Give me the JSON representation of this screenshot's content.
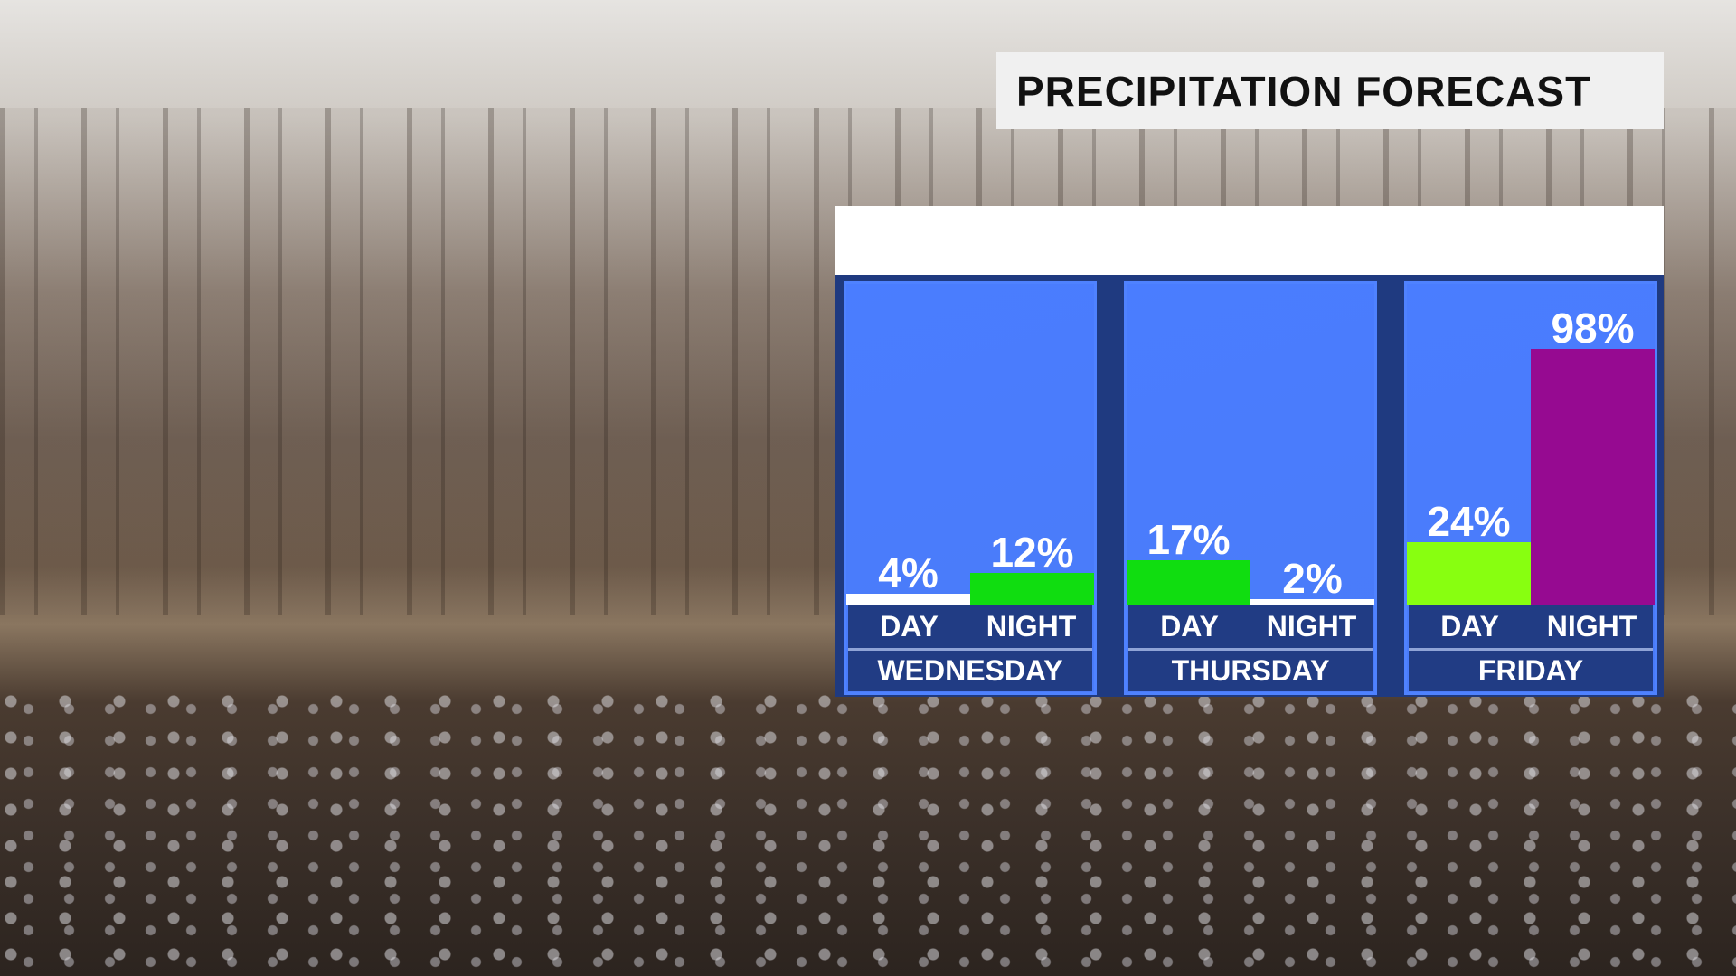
{
  "title": "PRECIPITATION FORECAST",
  "chart_data": {
    "type": "bar",
    "title": "PRECIPITATION FORECAST",
    "ylim": [
      0,
      100
    ],
    "unit": "%",
    "categories": [
      "WEDNESDAY",
      "THURSDAY",
      "FRIDAY"
    ],
    "sub_labels": [
      "DAY",
      "NIGHT"
    ],
    "groups": [
      {
        "day": "WEDNESDAY",
        "bars": [
          {
            "label": "DAY",
            "value": 4,
            "text": "4%",
            "color": "#ffffff"
          },
          {
            "label": "NIGHT",
            "value": 12,
            "text": "12%",
            "color": "#10dd10"
          }
        ]
      },
      {
        "day": "THURSDAY",
        "bars": [
          {
            "label": "DAY",
            "value": 17,
            "text": "17%",
            "color": "#10dd10"
          },
          {
            "label": "NIGHT",
            "value": 2,
            "text": "2%",
            "color": "#ffffff"
          }
        ]
      },
      {
        "day": "FRIDAY",
        "bars": [
          {
            "label": "DAY",
            "value": 24,
            "text": "24%",
            "color": "#88ff10"
          },
          {
            "label": "NIGHT",
            "value": 98,
            "text": "98%",
            "color": "#960a91"
          }
        ]
      }
    ]
  },
  "colors": {
    "panel": "#4a7dff",
    "frame": "#1f3a80"
  }
}
